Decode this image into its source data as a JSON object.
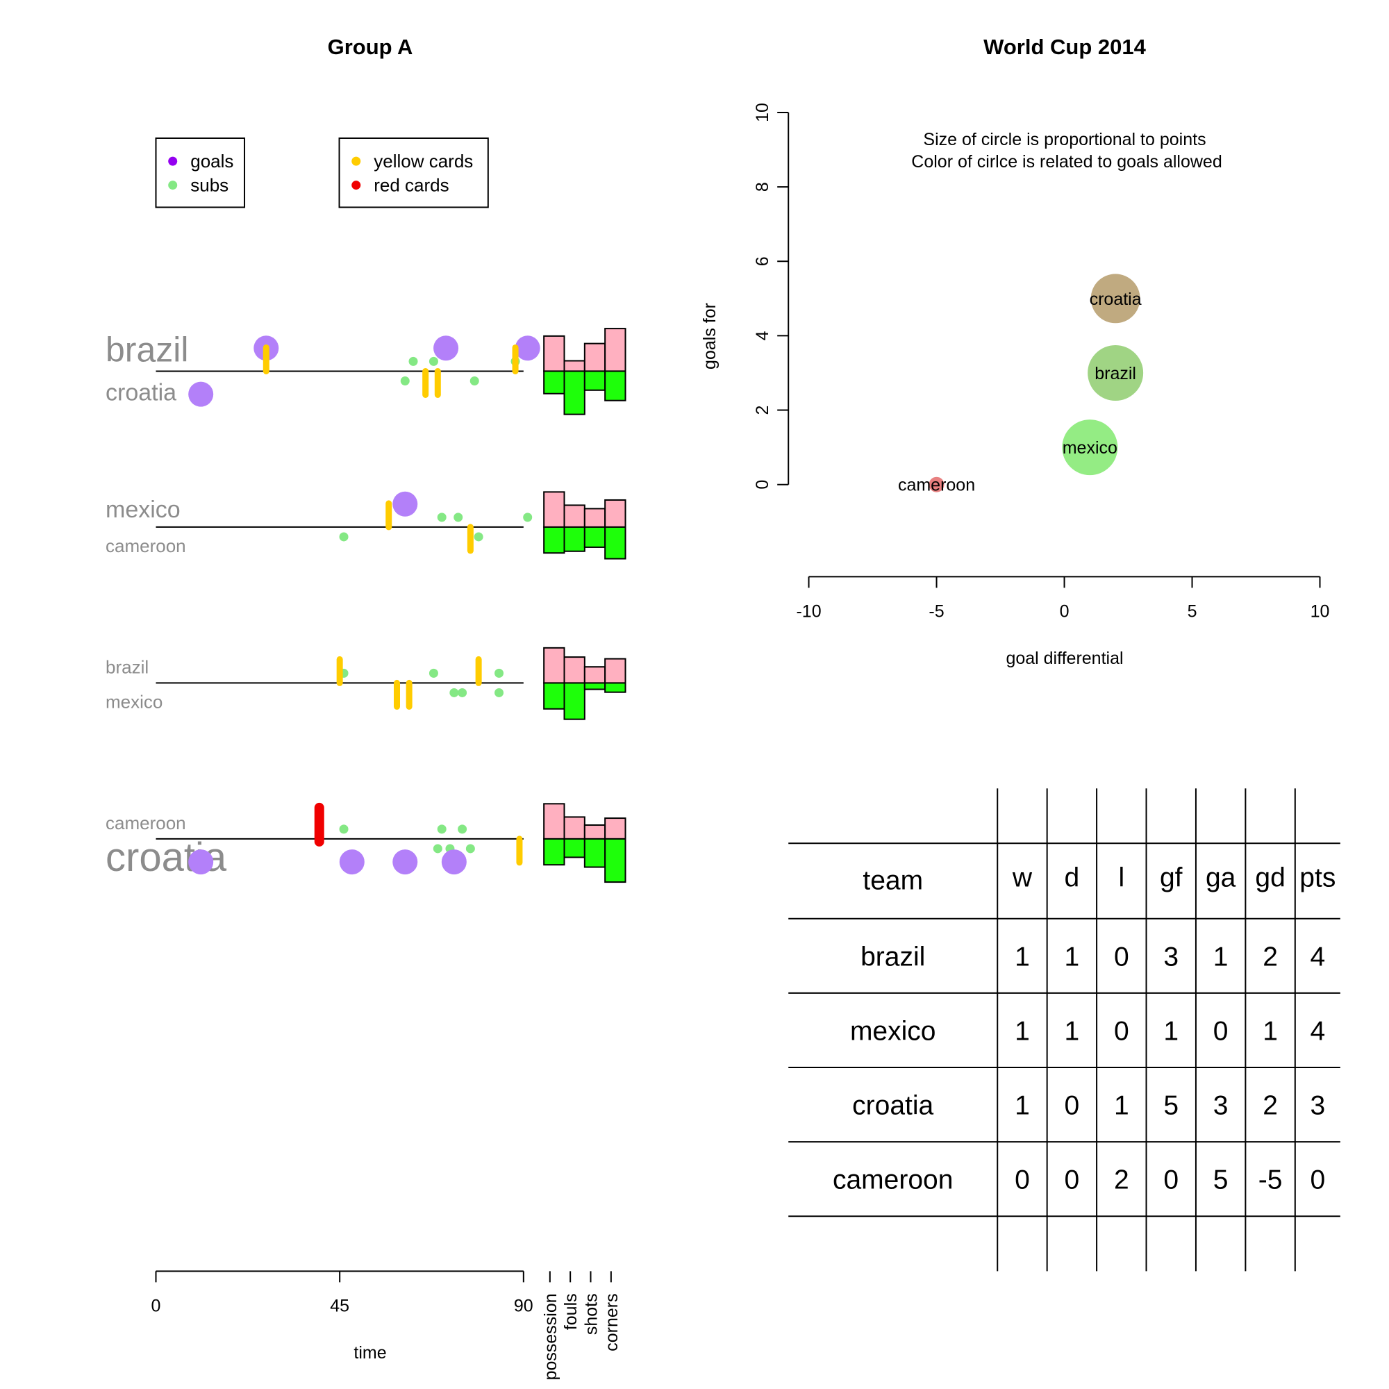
{
  "chart_data": [
    {
      "type": "timeline",
      "title": "Group A",
      "xlabel": "time",
      "xlim": [
        0,
        90
      ],
      "x_ticks": [
        "0",
        "45",
        "90"
      ],
      "stat_labels": [
        "possession",
        "fouls",
        "shots",
        "corners"
      ],
      "legend": [
        {
          "items": [
            {
              "label": "goals",
              "color": "#9400F0"
            },
            {
              "label": "subs",
              "color": "#84E884"
            }
          ]
        },
        {
          "items": [
            {
              "label": "yellow cards",
              "color": "#FFCC00"
            },
            {
              "label": "red cards",
              "color": "#F00000"
            }
          ]
        }
      ],
      "colors": {
        "goal": "#B380F9",
        "sub": "#84E884",
        "yellow": "#FFCC00",
        "red": "#F00000",
        "stat_top": "#FFB0C0",
        "stat_bottom": "#1EFF0A",
        "team_label": "#8C8C8C"
      },
      "matches": [
        {
          "home": "brazil",
          "away": "croatia",
          "home_goals": [
            27,
            71,
            91
          ],
          "away_goals": [
            11
          ],
          "home_subs": [
            63,
            68,
            88
          ],
          "away_subs": [
            61,
            78
          ],
          "home_yellow": [
            27,
            88
          ],
          "away_yellow": [
            66,
            69
          ],
          "home_red": [],
          "away_red": [],
          "home_stats": [
            0.61,
            0.18,
            0.48,
            0.74
          ],
          "away_stats": [
            0.39,
            0.75,
            0.33,
            0.51
          ]
        },
        {
          "home": "mexico",
          "away": "cameroon",
          "home_goals": [
            61
          ],
          "away_goals": [],
          "home_subs": [
            70,
            74,
            91
          ],
          "away_subs": [
            46,
            79
          ],
          "home_yellow": [
            57
          ],
          "away_yellow": [
            77
          ],
          "home_red": [],
          "away_red": [],
          "home_stats": [
            0.61,
            0.38,
            0.32,
            0.47
          ],
          "away_stats": [
            0.45,
            0.42,
            0.35,
            0.55
          ]
        },
        {
          "home": "brazil",
          "away": "mexico",
          "home_goals": [],
          "away_goals": [],
          "home_subs": [
            46,
            68,
            84
          ],
          "away_subs": [
            73,
            75,
            84
          ],
          "home_yellow": [
            45,
            79
          ],
          "away_yellow": [
            59,
            62
          ],
          "home_red": [],
          "away_red": [],
          "home_stats": [
            0.61,
            0.45,
            0.28,
            0.42
          ],
          "away_stats": [
            0.45,
            0.63,
            0.11,
            0.16
          ]
        },
        {
          "home": "cameroon",
          "away": "croatia",
          "home_goals": [],
          "away_goals": [
            11,
            48,
            61,
            73
          ],
          "home_subs": [
            46,
            70,
            75
          ],
          "away_subs": [
            69,
            72,
            77
          ],
          "home_yellow": [],
          "away_yellow": [
            89
          ],
          "home_red": [
            40
          ],
          "away_red": [],
          "home_stats": [
            0.61,
            0.38,
            0.24,
            0.36
          ],
          "away_stats": [
            0.45,
            0.32,
            0.49,
            0.75
          ]
        }
      ]
    },
    {
      "type": "scatter",
      "title": "World Cup 2014",
      "xlabel": "goal differential",
      "ylabel": "goals for",
      "xlim": [
        -10,
        10
      ],
      "ylim": [
        0,
        10
      ],
      "x_ticks": [
        "-10",
        "-5",
        "0",
        "5",
        "10"
      ],
      "y_ticks": [
        "0",
        "2",
        "4",
        "6",
        "8",
        "10"
      ],
      "annotation": [
        "Size of circle is proportional to points",
        "Color of cirlce is related to goals allowed"
      ],
      "points": [
        {
          "label": "croatia",
          "x": 2,
          "y": 5,
          "pts": 3,
          "ga": 3,
          "color": "#C0AA80"
        },
        {
          "label": "brazil",
          "x": 2,
          "y": 3,
          "pts": 4,
          "ga": 1,
          "color": "#A0D484"
        },
        {
          "label": "mexico",
          "x": 1,
          "y": 1,
          "pts": 4,
          "ga": 0,
          "color": "#94EC84"
        },
        {
          "label": "cameroon",
          "x": -5,
          "y": 0,
          "pts": 0,
          "ga": 5,
          "color": "#E88080"
        }
      ]
    },
    {
      "type": "table",
      "columns": [
        "team",
        "w",
        "d",
        "l",
        "gf",
        "ga",
        "gd",
        "pts"
      ],
      "rows": [
        [
          "brazil",
          "1",
          "1",
          "0",
          "3",
          "1",
          "2",
          "4"
        ],
        [
          "mexico",
          "1",
          "1",
          "0",
          "1",
          "0",
          "1",
          "4"
        ],
        [
          "croatia",
          "1",
          "0",
          "1",
          "5",
          "3",
          "2",
          "3"
        ],
        [
          "cameroon",
          "0",
          "0",
          "2",
          "0",
          "5",
          "-5",
          "0"
        ]
      ]
    }
  ]
}
